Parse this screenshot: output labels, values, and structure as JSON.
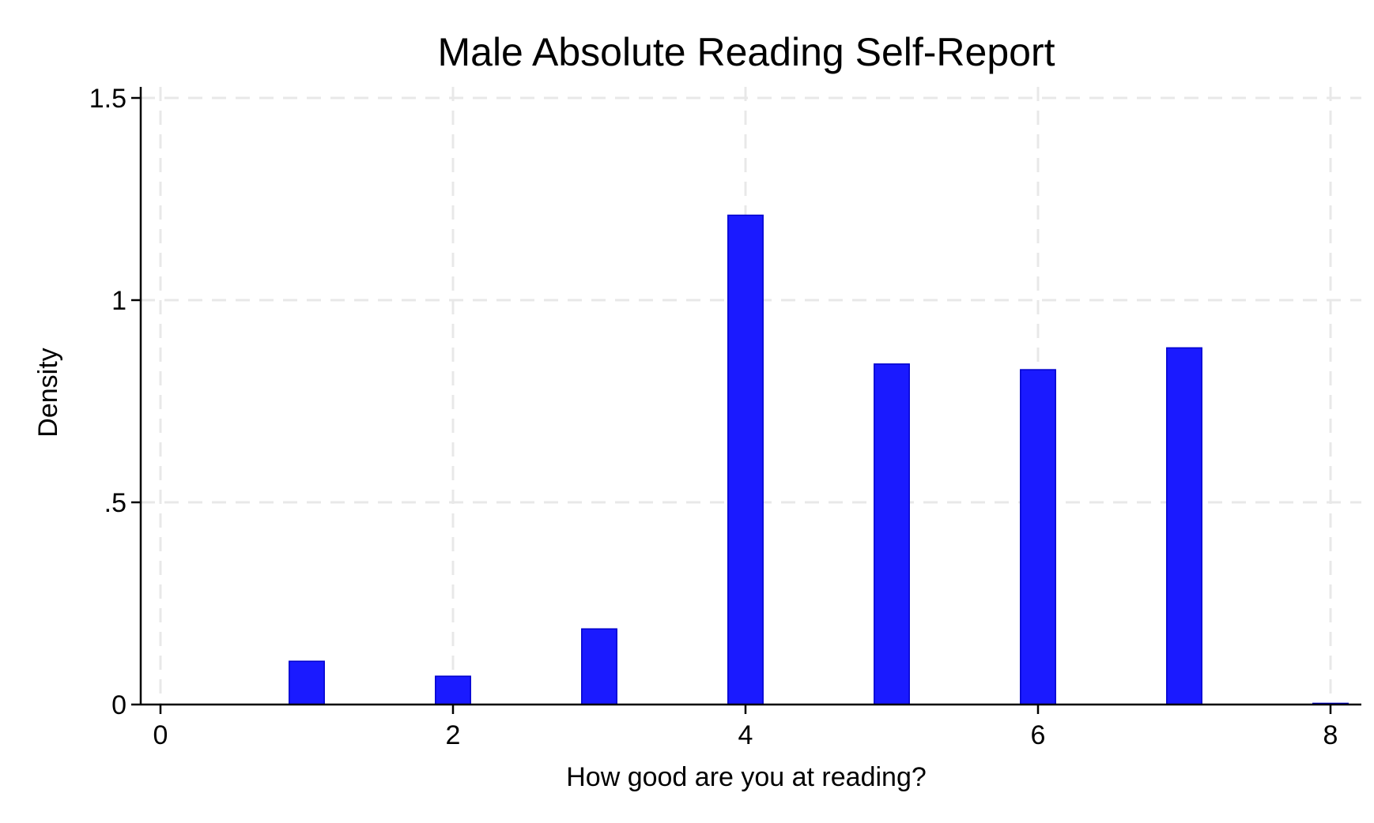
{
  "chart_data": {
    "type": "bar",
    "title": "Male Absolute Reading Self-Report",
    "xlabel": "How good are you at reading?",
    "ylabel": "Density",
    "xlim": [
      0,
      8
    ],
    "ylim": [
      0,
      1.5
    ],
    "x_ticks": [
      0,
      2,
      4,
      6,
      8
    ],
    "x_tick_labels": [
      "0",
      "2",
      "4",
      "6",
      "8"
    ],
    "y_ticks": [
      0,
      0.5,
      1,
      1.5
    ],
    "y_tick_labels": [
      "0",
      ".5",
      "1",
      "1.5"
    ],
    "grid": true,
    "bar_color": "#1a1aff",
    "bin_width": 0.24,
    "bars": [
      {
        "x": 1,
        "value": 0.107
      },
      {
        "x": 2,
        "value": 0.07
      },
      {
        "x": 3,
        "value": 0.187
      },
      {
        "x": 4,
        "value": 1.21
      },
      {
        "x": 5,
        "value": 0.842
      },
      {
        "x": 6,
        "value": 0.828
      },
      {
        "x": 7,
        "value": 0.882
      },
      {
        "x": 8,
        "value": 0.003
      }
    ]
  }
}
